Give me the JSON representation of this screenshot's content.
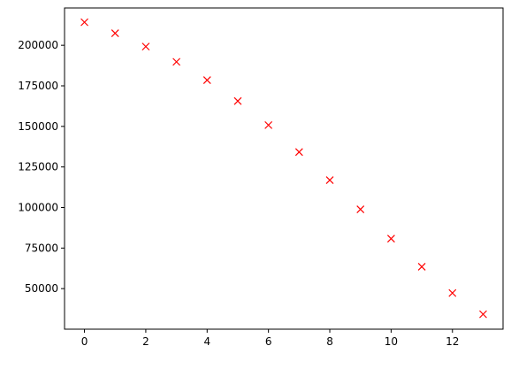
{
  "chart_data": {
    "type": "scatter",
    "title": "",
    "xlabel": "",
    "ylabel": "",
    "marker": "x",
    "marker_color": "#ff0000",
    "grid": false,
    "legend": "none",
    "xlim": [
      -0.65,
      13.65
    ],
    "ylim": [
      25000,
      223000
    ],
    "x_ticks": [
      0,
      2,
      4,
      6,
      8,
      10,
      12
    ],
    "x_tick_labels": [
      "0",
      "2",
      "4",
      "6",
      "8",
      "10",
      "12"
    ],
    "y_ticks": [
      50000,
      75000,
      100000,
      125000,
      150000,
      175000,
      200000
    ],
    "y_tick_labels": [
      "50000",
      "75000",
      "100000",
      "125000",
      "150000",
      "175000",
      "200000"
    ],
    "series": [
      {
        "x": [
          0,
          1,
          2,
          3,
          4,
          5,
          6,
          7,
          8,
          9,
          10,
          11,
          12,
          13
        ],
        "y": [
          214200,
          207400,
          199200,
          189800,
          178500,
          165600,
          150800,
          134200,
          116900,
          98900,
          80800,
          63500,
          47300,
          34200
        ]
      }
    ]
  }
}
